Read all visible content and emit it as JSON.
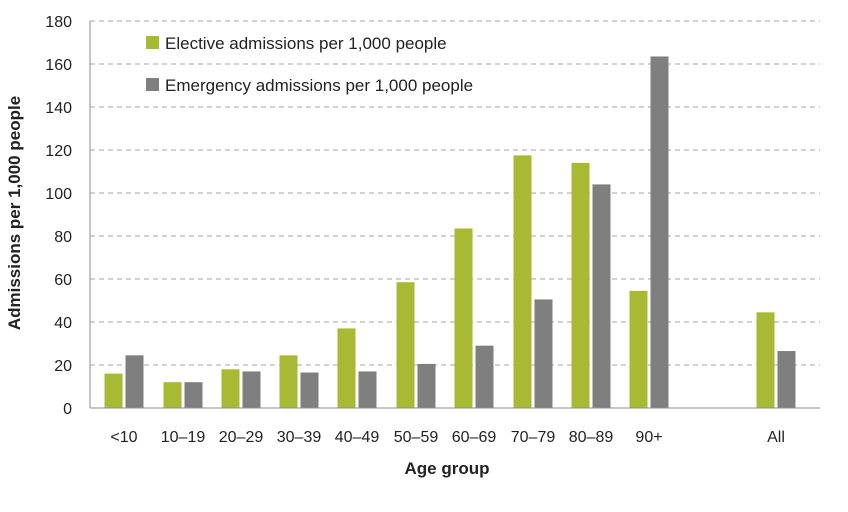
{
  "chart_data": {
    "type": "bar",
    "title": "",
    "xlabel": "Age group",
    "ylabel": "Admissions per 1,000 people",
    "ylim": [
      0,
      180
    ],
    "yticks": [
      0,
      20,
      40,
      60,
      80,
      100,
      120,
      140,
      160,
      180
    ],
    "grid": true,
    "legend_position": "top-left",
    "categories": [
      "<10",
      "10–19",
      "20–29",
      "30–39",
      "40–49",
      "50–59",
      "60–69",
      "70–79",
      "80–89",
      "90+",
      "All"
    ],
    "series": [
      {
        "name": "Elective admissions per 1,000 people",
        "color": "#a8b934",
        "values": [
          16,
          12,
          18,
          24.5,
          37,
          58.5,
          83.5,
          117.5,
          114,
          54.5,
          44.5
        ]
      },
      {
        "name": "Emergency admissions per 1,000 people",
        "color": "#7f7f7f",
        "values": [
          24.5,
          12,
          17,
          16.5,
          17,
          20.5,
          29,
          50.5,
          104,
          163.5,
          26.5
        ]
      }
    ]
  }
}
